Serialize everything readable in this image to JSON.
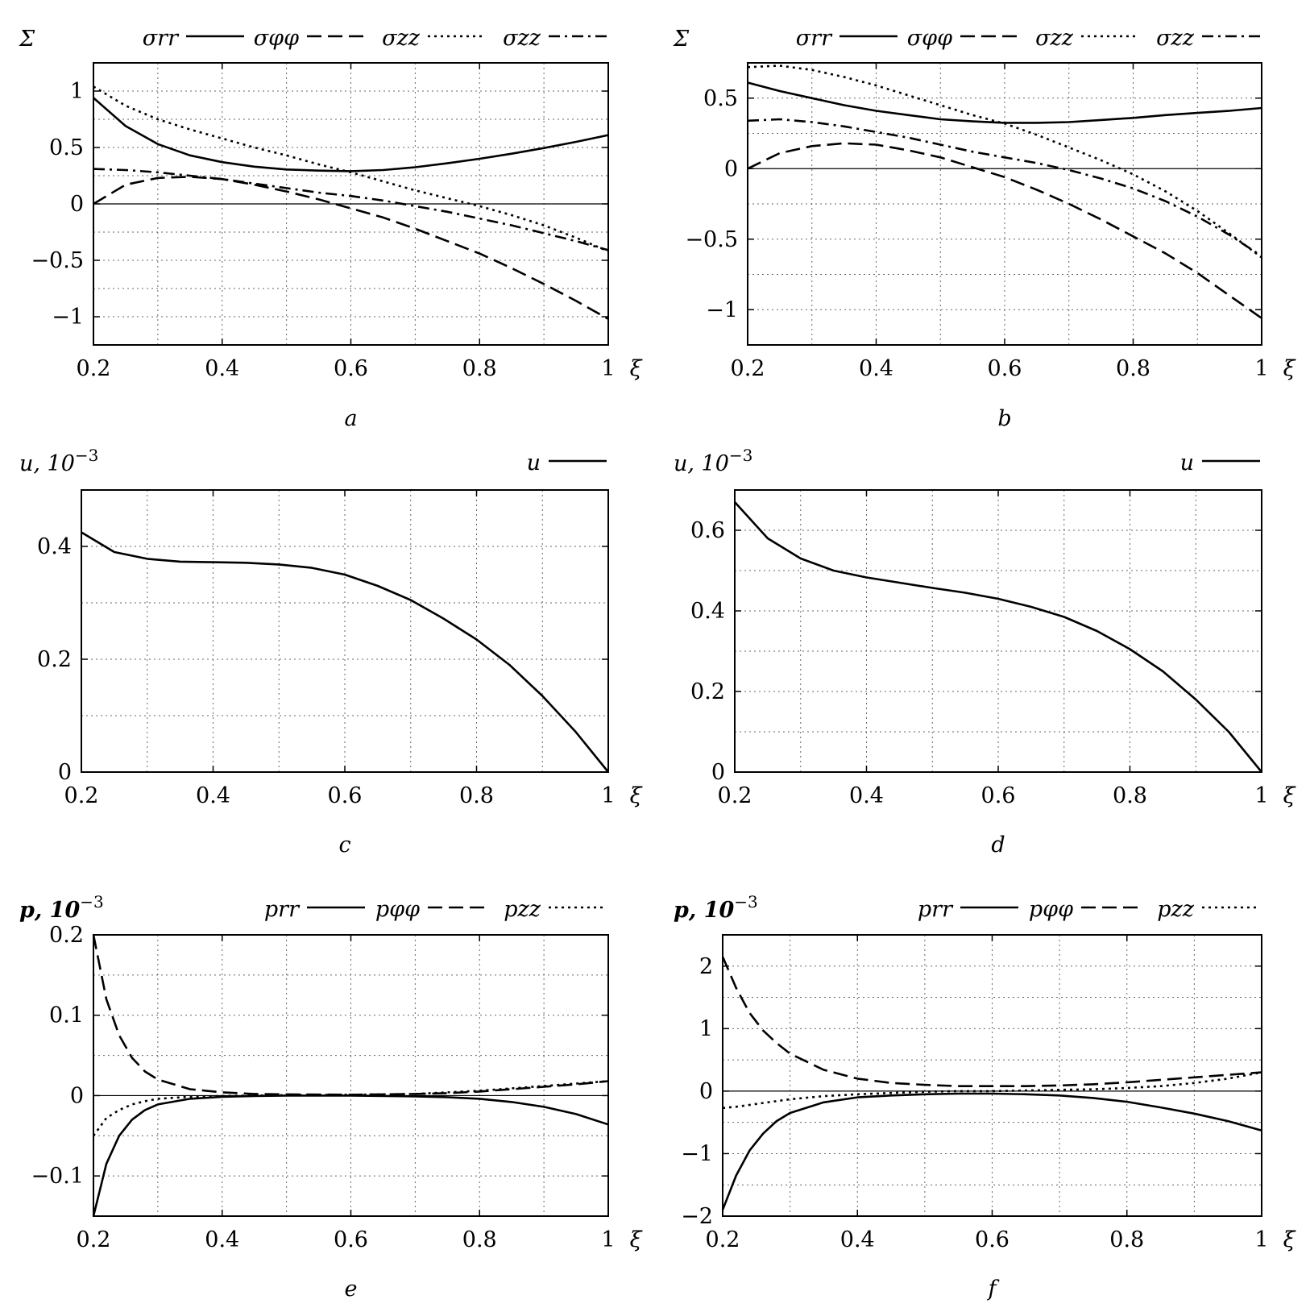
{
  "chart_data": [
    {
      "type": "line",
      "panel_label": "a",
      "ylabel": "Σ",
      "xlabel": "ξ",
      "xlim": [
        0.2,
        1
      ],
      "ylim": [
        -1.25,
        1.25
      ],
      "xticks": [
        0.2,
        0.4,
        0.6,
        0.8,
        1
      ],
      "xtick_labels": [
        "0.2",
        "0.4",
        "0.6",
        "0.8",
        "1"
      ],
      "yticks": [
        -1,
        -0.5,
        0,
        0.5,
        1
      ],
      "ytick_labels": [
        "−1",
        "−0.5",
        "0",
        "0.5",
        "1"
      ],
      "grid": true,
      "legend_position": "top",
      "series": [
        {
          "name": "σrr",
          "dash": "solid",
          "x": [
            0.2,
            0.25,
            0.3,
            0.35,
            0.4,
            0.45,
            0.5,
            0.55,
            0.6,
            0.65,
            0.7,
            0.75,
            0.8,
            0.85,
            0.9,
            0.95,
            1.0
          ],
          "y": [
            0.94,
            0.69,
            0.53,
            0.43,
            0.37,
            0.33,
            0.305,
            0.295,
            0.29,
            0.3,
            0.325,
            0.36,
            0.4,
            0.445,
            0.495,
            0.55,
            0.61
          ]
        },
        {
          "name": "σφφ",
          "dash": "dashed",
          "x": [
            0.2,
            0.25,
            0.3,
            0.35,
            0.4,
            0.45,
            0.5,
            0.55,
            0.6,
            0.65,
            0.7,
            0.75,
            0.8,
            0.85,
            0.9,
            0.95,
            1.0
          ],
          "y": [
            0.0,
            0.17,
            0.23,
            0.24,
            0.22,
            0.17,
            0.11,
            0.04,
            -0.04,
            -0.12,
            -0.22,
            -0.33,
            -0.44,
            -0.57,
            -0.71,
            -0.86,
            -1.02
          ]
        },
        {
          "name": "σzz",
          "dash": "dotted",
          "x": [
            0.2,
            0.25,
            0.3,
            0.35,
            0.4,
            0.45,
            0.5,
            0.55,
            0.6,
            0.65,
            0.7,
            0.75,
            0.8,
            0.85,
            0.9,
            0.95,
            1.0
          ],
          "y": [
            1.04,
            0.87,
            0.75,
            0.66,
            0.58,
            0.5,
            0.43,
            0.35,
            0.28,
            0.2,
            0.12,
            0.05,
            -0.02,
            -0.1,
            -0.19,
            -0.3,
            -0.42
          ]
        },
        {
          "name": "σzz",
          "dash": "dashdot",
          "x": [
            0.2,
            0.25,
            0.3,
            0.35,
            0.4,
            0.45,
            0.5,
            0.55,
            0.6,
            0.65,
            0.7,
            0.75,
            0.8,
            0.85,
            0.9,
            0.95,
            1.0
          ],
          "y": [
            0.31,
            0.3,
            0.28,
            0.25,
            0.22,
            0.18,
            0.14,
            0.1,
            0.07,
            0.03,
            -0.02,
            -0.07,
            -0.13,
            -0.19,
            -0.26,
            -0.33,
            -0.41
          ]
        }
      ]
    },
    {
      "type": "line",
      "panel_label": "b",
      "ylabel": "Σ",
      "xlabel": "ξ",
      "xlim": [
        0.2,
        1
      ],
      "ylim": [
        -1.25,
        0.75
      ],
      "xticks": [
        0.2,
        0.4,
        0.6,
        0.8,
        1
      ],
      "xtick_labels": [
        "0.2",
        "0.4",
        "0.6",
        "0.8",
        "1"
      ],
      "yticks": [
        -1,
        -0.5,
        0,
        0.5
      ],
      "ytick_labels": [
        "−1",
        "−0.5",
        "0",
        "0.5"
      ],
      "grid": true,
      "legend_position": "top",
      "series": [
        {
          "name": "σrr",
          "dash": "solid",
          "x": [
            0.2,
            0.25,
            0.3,
            0.35,
            0.4,
            0.45,
            0.5,
            0.55,
            0.6,
            0.65,
            0.7,
            0.75,
            0.8,
            0.85,
            0.9,
            0.95,
            1.0
          ],
          "y": [
            0.61,
            0.55,
            0.5,
            0.45,
            0.41,
            0.38,
            0.35,
            0.335,
            0.325,
            0.325,
            0.33,
            0.345,
            0.36,
            0.38,
            0.395,
            0.41,
            0.43
          ]
        },
        {
          "name": "σφφ",
          "dash": "dashed",
          "x": [
            0.2,
            0.25,
            0.3,
            0.35,
            0.4,
            0.45,
            0.5,
            0.55,
            0.6,
            0.65,
            0.7,
            0.75,
            0.8,
            0.85,
            0.9,
            0.95,
            1.0
          ],
          "y": [
            0.0,
            0.11,
            0.16,
            0.18,
            0.17,
            0.13,
            0.08,
            0.01,
            -0.06,
            -0.15,
            -0.25,
            -0.36,
            -0.48,
            -0.6,
            -0.74,
            -0.9,
            -1.06
          ]
        },
        {
          "name": "σzz",
          "dash": "dotted",
          "x": [
            0.2,
            0.25,
            0.3,
            0.35,
            0.4,
            0.45,
            0.5,
            0.55,
            0.6,
            0.65,
            0.7,
            0.75,
            0.8,
            0.85,
            0.9,
            0.95,
            1.0
          ],
          "y": [
            0.72,
            0.73,
            0.7,
            0.65,
            0.59,
            0.52,
            0.45,
            0.38,
            0.32,
            0.24,
            0.15,
            0.06,
            -0.04,
            -0.16,
            -0.3,
            -0.46,
            -0.63
          ]
        },
        {
          "name": "σzz",
          "dash": "dashdot",
          "x": [
            0.2,
            0.25,
            0.3,
            0.35,
            0.4,
            0.45,
            0.5,
            0.55,
            0.6,
            0.65,
            0.7,
            0.75,
            0.8,
            0.85,
            0.9,
            0.95,
            1.0
          ],
          "y": [
            0.34,
            0.35,
            0.33,
            0.3,
            0.26,
            0.22,
            0.17,
            0.12,
            0.08,
            0.04,
            -0.01,
            -0.07,
            -0.14,
            -0.23,
            -0.34,
            -0.47,
            -0.62
          ]
        }
      ]
    },
    {
      "type": "line",
      "panel_label": "c",
      "ylabel": "u, 10^−3",
      "xlabel": "ξ",
      "xlim": [
        0.2,
        1
      ],
      "ylim": [
        0,
        0.5
      ],
      "xticks": [
        0.2,
        0.4,
        0.6,
        0.8,
        1
      ],
      "xtick_labels": [
        "0.2",
        "0.4",
        "0.6",
        "0.8",
        "1"
      ],
      "yticks": [
        0,
        0.2,
        0.4
      ],
      "ytick_labels": [
        "0",
        "0.2",
        "0.4"
      ],
      "grid": true,
      "legend_position": "top-right",
      "series": [
        {
          "name": "u",
          "dash": "solid",
          "x": [
            0.2,
            0.25,
            0.3,
            0.35,
            0.4,
            0.45,
            0.5,
            0.55,
            0.6,
            0.65,
            0.7,
            0.75,
            0.8,
            0.85,
            0.9,
            0.95,
            1.0
          ],
          "y": [
            0.425,
            0.39,
            0.378,
            0.373,
            0.372,
            0.371,
            0.368,
            0.362,
            0.35,
            0.33,
            0.305,
            0.272,
            0.235,
            0.19,
            0.135,
            0.072,
            0.0
          ]
        }
      ]
    },
    {
      "type": "line",
      "panel_label": "d",
      "ylabel": "u, 10^−3",
      "xlabel": "ξ",
      "xlim": [
        0.2,
        1
      ],
      "ylim": [
        0,
        0.7
      ],
      "xticks": [
        0.2,
        0.4,
        0.6,
        0.8,
        1
      ],
      "xtick_labels": [
        "0.2",
        "0.4",
        "0.6",
        "0.8",
        "1"
      ],
      "yticks": [
        0,
        0.2,
        0.4,
        0.6
      ],
      "ytick_labels": [
        "0",
        "0.2",
        "0.4",
        "0.6"
      ],
      "grid": true,
      "legend_position": "top-right",
      "series": [
        {
          "name": "u",
          "dash": "solid",
          "x": [
            0.2,
            0.25,
            0.3,
            0.35,
            0.4,
            0.45,
            0.5,
            0.55,
            0.6,
            0.65,
            0.7,
            0.75,
            0.8,
            0.85,
            0.9,
            0.95,
            1.0
          ],
          "y": [
            0.67,
            0.58,
            0.53,
            0.5,
            0.483,
            0.47,
            0.457,
            0.445,
            0.43,
            0.41,
            0.385,
            0.35,
            0.305,
            0.25,
            0.18,
            0.1,
            0.0
          ]
        }
      ]
    },
    {
      "type": "line",
      "panel_label": "e",
      "ylabel": "p, 10^−3",
      "xlabel": "ξ",
      "xlim": [
        0.2,
        1
      ],
      "ylim": [
        -0.15,
        0.2
      ],
      "xticks": [
        0.2,
        0.4,
        0.6,
        0.8,
        1
      ],
      "xtick_labels": [
        "0.2",
        "0.4",
        "0.6",
        "0.8",
        "1"
      ],
      "yticks": [
        -0.1,
        0,
        0.1,
        0.2
      ],
      "ytick_labels": [
        "−0.1",
        "0",
        "0.1",
        "0.2"
      ],
      "grid": true,
      "legend_position": "top",
      "series": [
        {
          "name": "prr",
          "dash": "solid",
          "x": [
            0.2,
            0.22,
            0.24,
            0.26,
            0.28,
            0.3,
            0.35,
            0.4,
            0.45,
            0.5,
            0.6,
            0.7,
            0.75,
            0.8,
            0.85,
            0.9,
            0.95,
            1.0
          ],
          "y": [
            -0.15,
            -0.085,
            -0.05,
            -0.03,
            -0.018,
            -0.011,
            -0.004,
            -0.0015,
            -0.0005,
            0.0,
            0.0,
            -0.001,
            -0.002,
            -0.004,
            -0.008,
            -0.014,
            -0.023,
            -0.036
          ]
        },
        {
          "name": "pφφ",
          "dash": "dashed",
          "x": [
            0.2,
            0.22,
            0.24,
            0.26,
            0.28,
            0.3,
            0.35,
            0.4,
            0.45,
            0.5,
            0.6,
            0.7,
            0.75,
            0.8,
            0.85,
            0.9,
            0.95,
            1.0
          ],
          "y": [
            0.2,
            0.12,
            0.075,
            0.047,
            0.03,
            0.02,
            0.008,
            0.004,
            0.002,
            0.0015,
            0.001,
            0.002,
            0.003,
            0.005,
            0.008,
            0.011,
            0.014,
            0.018
          ]
        },
        {
          "name": "pzz",
          "dash": "dotted",
          "x": [
            0.2,
            0.22,
            0.24,
            0.26,
            0.28,
            0.3,
            0.35,
            0.4,
            0.45,
            0.5,
            0.6,
            0.7,
            0.75,
            0.8,
            0.85,
            0.9,
            0.95,
            1.0
          ],
          "y": [
            -0.05,
            -0.028,
            -0.018,
            -0.011,
            -0.007,
            -0.004,
            -0.0015,
            -0.0005,
            0.0,
            0.0005,
            0.001,
            0.002,
            0.004,
            0.006,
            0.009,
            0.012,
            0.015,
            0.018
          ]
        }
      ]
    },
    {
      "type": "line",
      "panel_label": "f",
      "ylabel": "p, 10^−3",
      "xlabel": "ξ",
      "xlim": [
        0.2,
        1
      ],
      "ylim": [
        -2,
        2.5
      ],
      "xticks": [
        0.2,
        0.4,
        0.6,
        0.8,
        1
      ],
      "xtick_labels": [
        "0.2",
        "0.4",
        "0.6",
        "0.8",
        "1"
      ],
      "yticks": [
        -2,
        -1,
        0,
        1,
        2
      ],
      "ytick_labels": [
        "−2",
        "−1",
        "0",
        "1",
        "2"
      ],
      "grid": true,
      "legend_position": "top",
      "series": [
        {
          "name": "prr",
          "dash": "solid",
          "x": [
            0.2,
            0.22,
            0.24,
            0.26,
            0.28,
            0.3,
            0.35,
            0.4,
            0.45,
            0.5,
            0.55,
            0.6,
            0.65,
            0.7,
            0.75,
            0.8,
            0.85,
            0.9,
            0.95,
            1.0
          ],
          "y": [
            -1.9,
            -1.35,
            -0.95,
            -0.68,
            -0.48,
            -0.35,
            -0.18,
            -0.1,
            -0.07,
            -0.05,
            -0.04,
            -0.04,
            -0.05,
            -0.07,
            -0.11,
            -0.17,
            -0.26,
            -0.36,
            -0.48,
            -0.63
          ]
        },
        {
          "name": "pφφ",
          "dash": "dashed",
          "x": [
            0.2,
            0.22,
            0.24,
            0.26,
            0.28,
            0.3,
            0.35,
            0.4,
            0.45,
            0.5,
            0.55,
            0.6,
            0.65,
            0.7,
            0.75,
            0.8,
            0.85,
            0.9,
            0.95,
            1.0
          ],
          "y": [
            2.15,
            1.65,
            1.25,
            0.97,
            0.77,
            0.6,
            0.34,
            0.2,
            0.13,
            0.1,
            0.08,
            0.08,
            0.08,
            0.09,
            0.11,
            0.14,
            0.18,
            0.22,
            0.26,
            0.3
          ]
        },
        {
          "name": "pzz",
          "dash": "dotted",
          "x": [
            0.2,
            0.22,
            0.24,
            0.26,
            0.28,
            0.3,
            0.35,
            0.4,
            0.45,
            0.5,
            0.55,
            0.6,
            0.65,
            0.7,
            0.75,
            0.8,
            0.85,
            0.9,
            0.95,
            1.0
          ],
          "y": [
            -0.27,
            -0.25,
            -0.22,
            -0.19,
            -0.16,
            -0.13,
            -0.08,
            -0.05,
            -0.03,
            -0.01,
            0.0,
            0.0,
            0.01,
            0.02,
            0.03,
            0.05,
            0.08,
            0.13,
            0.2,
            0.3
          ]
        }
      ]
    }
  ]
}
